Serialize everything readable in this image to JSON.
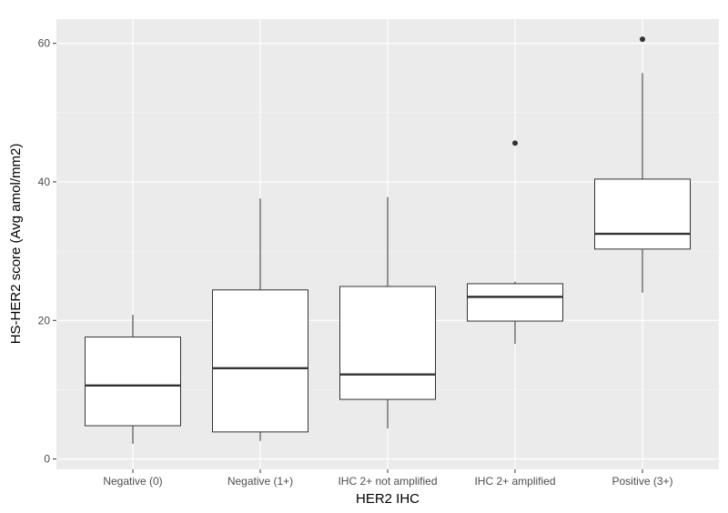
{
  "chart_data": {
    "type": "boxplot",
    "xlabel": "HER2 IHC",
    "ylabel": "HS-HER2 score (Avg amol/mm2)",
    "ylim": [
      -1.5,
      63.5
    ],
    "yticks": [
      0,
      20,
      40,
      60
    ],
    "grid": true,
    "categories": [
      "Negative (0)",
      "Negative (1+)",
      "IHC 2+ not amplified",
      "IHC 2+ amplified",
      "Positive (3+)"
    ],
    "boxes": [
      {
        "category": "Negative (0)",
        "whisker_low": 2.2,
        "q1": 4.8,
        "median": 10.6,
        "q3": 17.6,
        "whisker_high": 20.8,
        "outliers": []
      },
      {
        "category": "Negative (1+)",
        "whisker_low": 2.6,
        "q1": 3.9,
        "median": 13.1,
        "q3": 24.4,
        "whisker_high": 37.6,
        "outliers": []
      },
      {
        "category": "IHC 2+ not amplified",
        "whisker_low": 4.4,
        "q1": 8.6,
        "median": 12.2,
        "q3": 24.9,
        "whisker_high": 37.8,
        "outliers": []
      },
      {
        "category": "IHC 2+ amplified",
        "whisker_low": 16.6,
        "q1": 19.9,
        "median": 23.4,
        "q3": 25.3,
        "whisker_high": 25.6,
        "outliers": [
          45.6
        ]
      },
      {
        "category": "Positive (3+)",
        "whisker_low": 24.0,
        "q1": 30.3,
        "median": 32.5,
        "q3": 40.4,
        "whisker_high": 55.7,
        "outliers": [
          60.6
        ]
      }
    ],
    "colors": {
      "panel_background": "#ebebeb",
      "grid_major": "#ffffff",
      "grid_minor": "#f5f5f5",
      "box_fill": "#ffffff",
      "box_line": "#333333",
      "tick_text": "#4d4d4d",
      "axis_title": "#000000"
    }
  }
}
